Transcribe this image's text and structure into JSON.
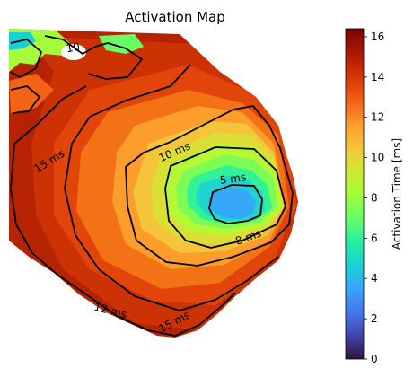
{
  "chart_data": {
    "type": "heatmap",
    "title": "Activation Map",
    "colorbar": {
      "label": "Activation Time [ms]",
      "range": [
        0,
        16.4
      ],
      "ticks": [
        0,
        2,
        4,
        6,
        8,
        10,
        12,
        14,
        16
      ],
      "tick_labels": [
        "0",
        "2",
        "4",
        "6",
        "8",
        "10",
        "12",
        "14",
        "16"
      ],
      "colormap": "turbo"
    },
    "earliest_activation_ms": 4,
    "latest_activation_ms": 16.4,
    "contour_labels": [
      {
        "text": "5 ms",
        "level": 5
      },
      {
        "text": "8 ms",
        "level": 8
      },
      {
        "text": "10 ms",
        "level": 10
      },
      {
        "text": "10",
        "level": 10
      },
      {
        "text": "12 ms",
        "level": 12
      },
      {
        "text": "15 ms",
        "level": 15
      },
      {
        "text": "15 ms",
        "level": 15
      }
    ],
    "axes_visible": false,
    "grid": false
  }
}
